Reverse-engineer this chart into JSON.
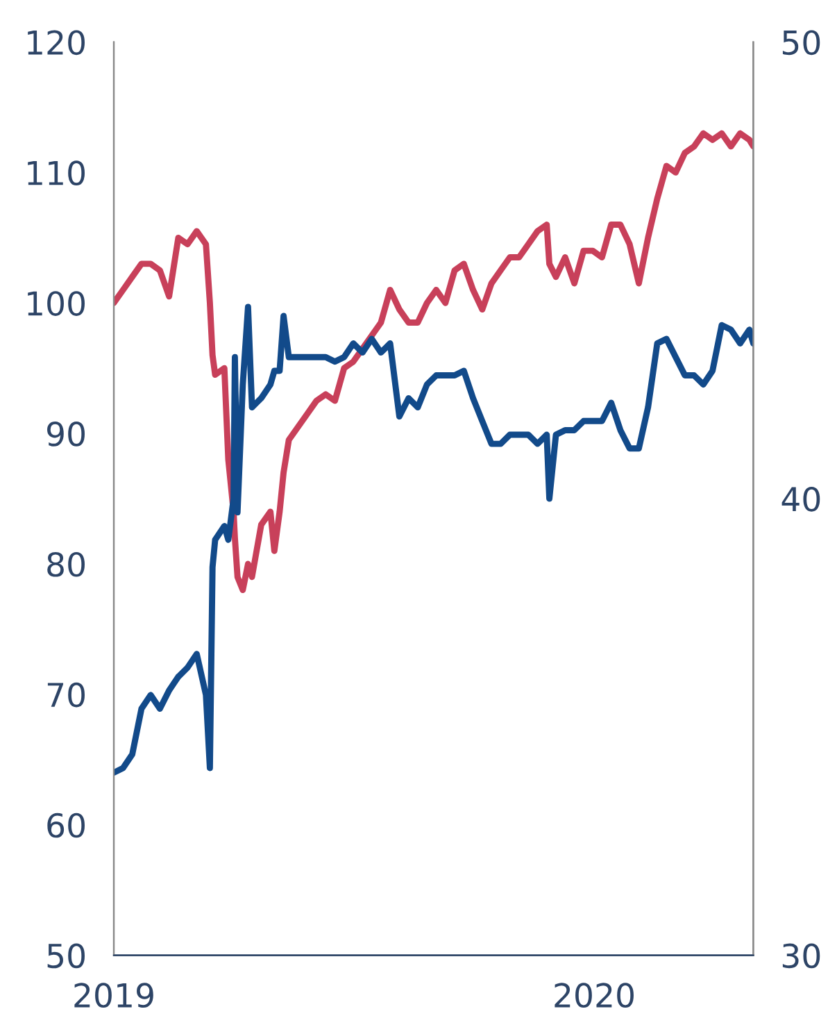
{
  "chart_data": {
    "type": "line",
    "x": [
      "2019-01-01",
      "2019-01-08",
      "2019-01-15",
      "2019-01-22",
      "2019-01-29",
      "2019-02-05",
      "2019-02-12",
      "2019-02-19",
      "2019-02-26",
      "2019-03-05",
      "2019-03-12",
      "2019-03-15",
      "2019-03-17",
      "2019-03-19",
      "2019-03-26",
      "2019-03-29",
      "2019-04-02",
      "2019-04-03",
      "2019-04-05",
      "2019-04-09",
      "2019-04-13",
      "2019-04-16",
      "2019-04-23",
      "2019-04-30",
      "2019-05-03",
      "2019-05-07",
      "2019-05-10",
      "2019-05-14",
      "2019-05-21",
      "2019-05-28",
      "2019-06-04",
      "2019-06-11",
      "2019-06-18",
      "2019-06-25",
      "2019-07-02",
      "2019-07-09",
      "2019-07-16",
      "2019-07-23",
      "2019-07-30",
      "2019-08-06",
      "2019-08-13",
      "2019-08-20",
      "2019-08-27",
      "2019-09-03",
      "2019-09-10",
      "2019-09-17",
      "2019-09-24",
      "2019-10-01",
      "2019-10-08",
      "2019-10-15",
      "2019-10-22",
      "2019-10-29",
      "2019-11-05",
      "2019-11-12",
      "2019-11-19",
      "2019-11-26",
      "2019-11-28",
      "2019-12-03",
      "2019-12-10",
      "2019-12-17",
      "2019-12-24",
      "2019-12-31",
      "2020-01-07",
      "2020-01-14",
      "2020-01-21",
      "2020-01-28",
      "2020-02-04",
      "2020-02-11",
      "2020-02-18",
      "2020-02-25",
      "2020-03-03",
      "2020-03-10",
      "2020-03-17",
      "2020-03-24",
      "2020-03-31",
      "2020-04-07",
      "2020-04-14",
      "2020-04-21",
      "2020-04-28",
      "2020-05-01"
    ],
    "series": [
      {
        "color": "#c8405a",
        "values": [
          100,
          101,
          102,
          103,
          103,
          102.5,
          100.5,
          105,
          104.5,
          105.5,
          104.5,
          100,
          96,
          94.5,
          95,
          88,
          84,
          82,
          79,
          78,
          80,
          79,
          83,
          84,
          81,
          84,
          87,
          89.5,
          90.5,
          91.5,
          92.5,
          93,
          92.5,
          95,
          95.5,
          96.5,
          97.5,
          98.5,
          101,
          99.5,
          98.5,
          98.5,
          100,
          101,
          100,
          102.5,
          103,
          101,
          99.5,
          101.5,
          102.5,
          103.5,
          103.5,
          104.5,
          105.5,
          106,
          103,
          102,
          103.5,
          101.5,
          104,
          104,
          103.5,
          106,
          106,
          104.5,
          101.5,
          105,
          108,
          110.5,
          110,
          111.5,
          112,
          113,
          112.5,
          113,
          112,
          113,
          112.5,
          112
        ]
      },
      {
        "color": "#124a8a",
        "axis": "y2",
        "values": [
          34.0,
          34.1,
          34.4,
          35.4,
          35.7,
          35.4,
          35.8,
          36.1,
          36.3,
          36.6,
          35.7,
          34.1,
          38.5,
          39.1,
          39.4,
          39.1,
          40.0,
          43.1,
          39.7,
          42.5,
          44.2,
          42.0,
          42.2,
          42.5,
          42.8,
          42.8,
          44.0,
          43.1,
          43.1,
          43.1,
          43.1,
          43.1,
          43.0,
          43.1,
          43.4,
          43.2,
          43.5,
          43.2,
          43.4,
          41.8,
          42.2,
          42.0,
          42.5,
          42.7,
          42.7,
          42.7,
          42.8,
          42.2,
          41.7,
          41.2,
          41.2,
          41.4,
          41.4,
          41.4,
          41.2,
          41.4,
          40.0,
          41.4,
          41.5,
          41.5,
          41.7,
          41.7,
          41.7,
          42.1,
          41.5,
          41.1,
          41.1,
          42.0,
          43.4,
          43.5,
          43.1,
          42.7,
          42.7,
          42.5,
          42.8,
          43.8,
          43.7,
          43.4,
          43.7,
          43.4
        ]
      }
    ],
    "xlim": [
      "2019-01-01",
      "2020-05-01"
    ],
    "xticks": [
      {
        "value": "2019-01-01",
        "label": "2019"
      },
      {
        "value": "2020-01-01",
        "label": "2020"
      }
    ],
    "ylim": [
      50,
      120
    ],
    "yticks": [
      50,
      60,
      70,
      80,
      90,
      100,
      110,
      120
    ],
    "y2lim": [
      30,
      50
    ],
    "y2ticks": [
      30,
      40,
      50
    ],
    "grid": false
  }
}
